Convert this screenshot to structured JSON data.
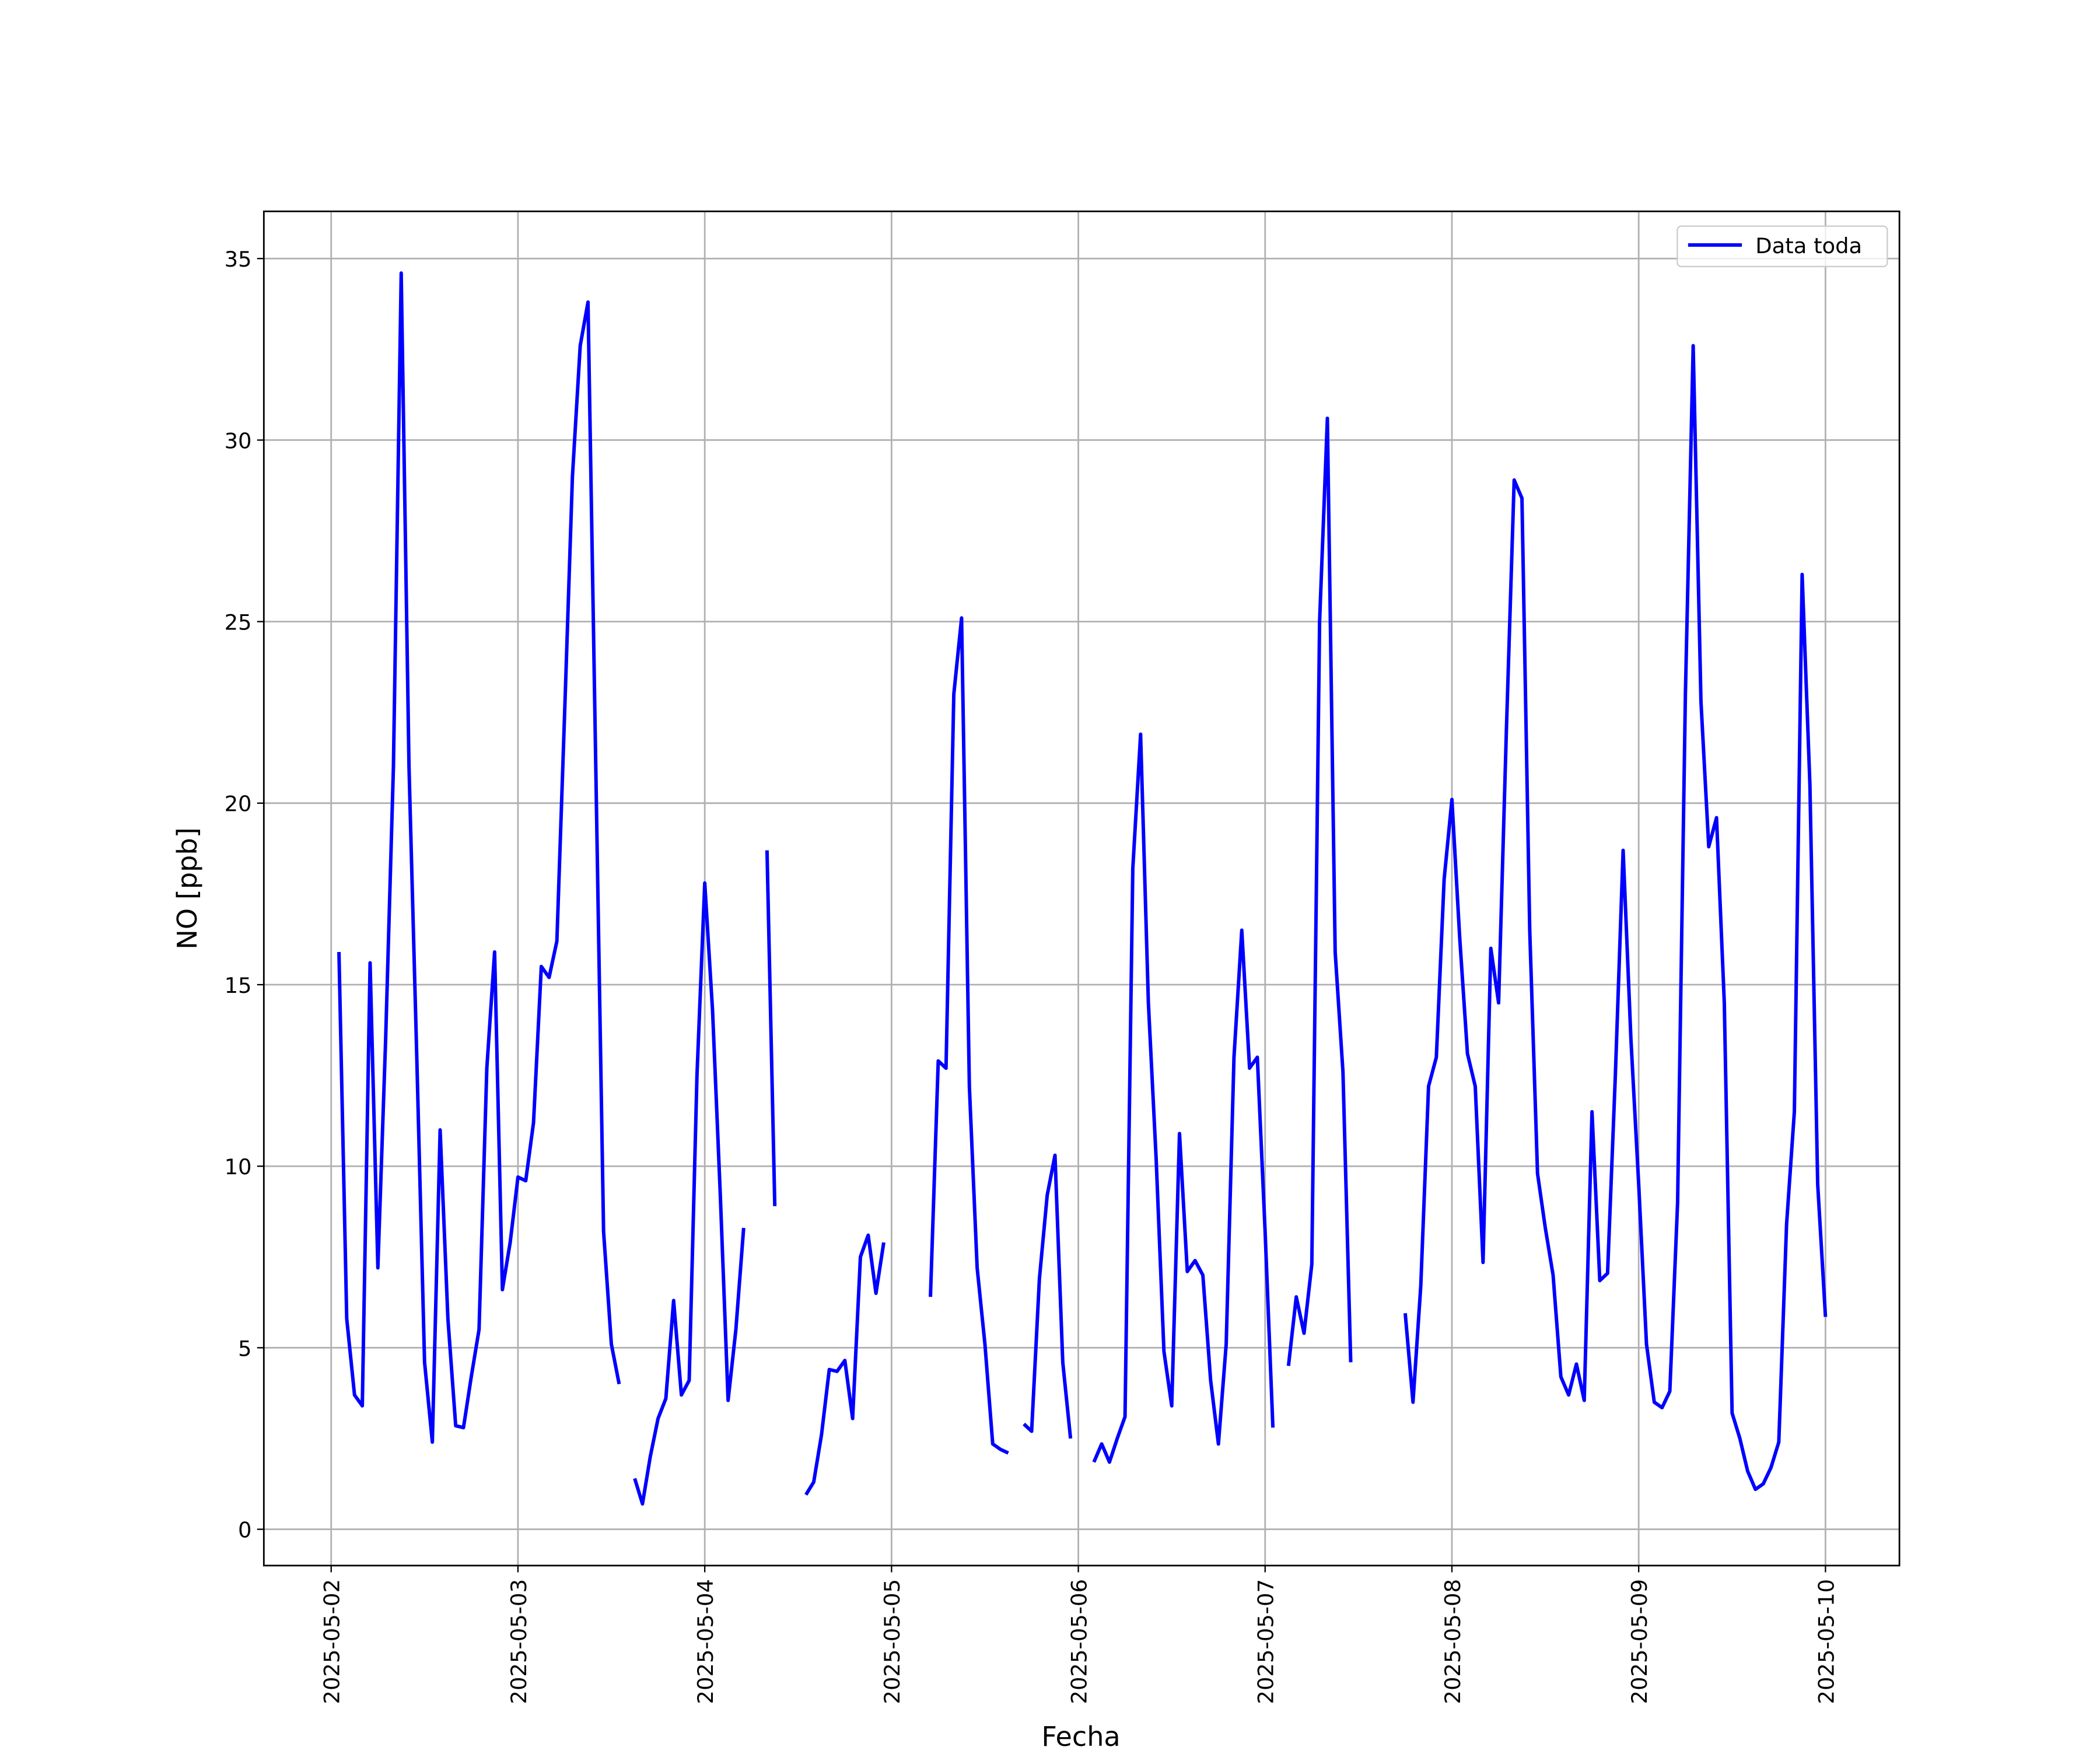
{
  "chart_data": {
    "type": "line",
    "x_label": "Fecha",
    "y_label": "NO [ppb]",
    "x": [
      "2025-05-02 01:00",
      "2025-05-02 02:00",
      "2025-05-02 03:00",
      "2025-05-02 04:00",
      "2025-05-02 05:00",
      "2025-05-02 06:00",
      "2025-05-02 07:00",
      "2025-05-02 08:00",
      "2025-05-02 09:00",
      "2025-05-02 10:00",
      "2025-05-02 11:00",
      "2025-05-02 12:00",
      "2025-05-02 13:00",
      "2025-05-02 14:00",
      "2025-05-02 15:00",
      "2025-05-02 16:00",
      "2025-05-02 17:00",
      "2025-05-02 18:00",
      "2025-05-02 19:00",
      "2025-05-02 20:00",
      "2025-05-02 21:00",
      "2025-05-02 22:00",
      "2025-05-02 23:00",
      "2025-05-03 00:00",
      "2025-05-03 01:00",
      "2025-05-03 02:00",
      "2025-05-03 03:00",
      "2025-05-03 04:00",
      "2025-05-03 05:00",
      "2025-05-03 06:00",
      "2025-05-03 07:00",
      "2025-05-03 08:00",
      "2025-05-03 09:00",
      "2025-05-03 10:00",
      "2025-05-03 11:00",
      "2025-05-03 12:00",
      "2025-05-03 13:00",
      "2025-05-03 14:00",
      "2025-05-03 15:00",
      "2025-05-03 16:00",
      "2025-05-03 17:00",
      "2025-05-03 18:00",
      "2025-05-03 19:00",
      "2025-05-03 20:00",
      "2025-05-03 21:00",
      "2025-05-03 22:00",
      "2025-05-03 23:00",
      "2025-05-04 00:00",
      "2025-05-04 01:00",
      "2025-05-04 02:00",
      "2025-05-04 03:00",
      "2025-05-04 04:00",
      "2025-05-04 05:00",
      "2025-05-04 06:00",
      "2025-05-04 07:00",
      "2025-05-04 08:00",
      "2025-05-04 09:00",
      "2025-05-04 10:00",
      "2025-05-04 11:00",
      "2025-05-04 12:00",
      "2025-05-04 13:00",
      "2025-05-04 14:00",
      "2025-05-04 15:00",
      "2025-05-04 16:00",
      "2025-05-04 17:00",
      "2025-05-04 18:00",
      "2025-05-04 19:00",
      "2025-05-04 20:00",
      "2025-05-04 21:00",
      "2025-05-04 22:00",
      "2025-05-04 23:00",
      "2025-05-05 00:00",
      "2025-05-05 01:00",
      "2025-05-05 02:00",
      "2025-05-05 03:00",
      "2025-05-05 04:00",
      "2025-05-05 05:00",
      "2025-05-05 06:00",
      "2025-05-05 07:00",
      "2025-05-05 08:00",
      "2025-05-05 09:00",
      "2025-05-05 10:00",
      "2025-05-05 11:00",
      "2025-05-05 12:00",
      "2025-05-05 13:00",
      "2025-05-05 14:00",
      "2025-05-05 15:00",
      "2025-05-05 16:00",
      "2025-05-05 17:00",
      "2025-05-05 18:00",
      "2025-05-05 19:00",
      "2025-05-05 20:00",
      "2025-05-05 21:00",
      "2025-05-05 22:00",
      "2025-05-05 23:00",
      "2025-05-06 00:00",
      "2025-05-06 01:00",
      "2025-05-06 02:00",
      "2025-05-06 03:00",
      "2025-05-06 04:00",
      "2025-05-06 05:00",
      "2025-05-06 06:00",
      "2025-05-06 07:00",
      "2025-05-06 08:00",
      "2025-05-06 09:00",
      "2025-05-06 10:00",
      "2025-05-06 11:00",
      "2025-05-06 12:00",
      "2025-05-06 13:00",
      "2025-05-06 14:00",
      "2025-05-06 15:00",
      "2025-05-06 16:00",
      "2025-05-06 17:00",
      "2025-05-06 18:00",
      "2025-05-06 19:00",
      "2025-05-06 20:00",
      "2025-05-06 21:00",
      "2025-05-06 22:00",
      "2025-05-06 23:00",
      "2025-05-07 00:00",
      "2025-05-07 01:00",
      "2025-05-07 02:00",
      "2025-05-07 03:00",
      "2025-05-07 04:00",
      "2025-05-07 05:00",
      "2025-05-07 06:00",
      "2025-05-07 07:00",
      "2025-05-07 08:00",
      "2025-05-07 09:00",
      "2025-05-07 10:00",
      "2025-05-07 11:00",
      "2025-05-07 12:00",
      "2025-05-07 13:00",
      "2025-05-07 14:00",
      "2025-05-07 15:00",
      "2025-05-07 16:00",
      "2025-05-07 17:00",
      "2025-05-07 18:00",
      "2025-05-07 19:00",
      "2025-05-07 20:00",
      "2025-05-07 21:00",
      "2025-05-07 22:00",
      "2025-05-07 23:00",
      "2025-05-08 00:00",
      "2025-05-08 01:00",
      "2025-05-08 02:00",
      "2025-05-08 03:00",
      "2025-05-08 04:00",
      "2025-05-08 05:00",
      "2025-05-08 06:00",
      "2025-05-08 07:00",
      "2025-05-08 08:00",
      "2025-05-08 09:00",
      "2025-05-08 10:00",
      "2025-05-08 11:00",
      "2025-05-08 12:00",
      "2025-05-08 13:00",
      "2025-05-08 14:00",
      "2025-05-08 15:00",
      "2025-05-08 16:00",
      "2025-05-08 17:00",
      "2025-05-08 18:00",
      "2025-05-08 19:00",
      "2025-05-08 20:00",
      "2025-05-08 21:00",
      "2025-05-08 22:00",
      "2025-05-08 23:00",
      "2025-05-09 00:00",
      "2025-05-09 01:00",
      "2025-05-09 02:00",
      "2025-05-09 03:00",
      "2025-05-09 04:00",
      "2025-05-09 05:00",
      "2025-05-09 06:00",
      "2025-05-09 07:00",
      "2025-05-09 08:00",
      "2025-05-09 09:00",
      "2025-05-09 10:00",
      "2025-05-09 11:00",
      "2025-05-09 12:00",
      "2025-05-09 13:00",
      "2025-05-09 14:00",
      "2025-05-09 15:00",
      "2025-05-09 16:00",
      "2025-05-09 17:00",
      "2025-05-09 18:00",
      "2025-05-09 19:00",
      "2025-05-09 20:00",
      "2025-05-09 21:00",
      "2025-05-09 22:00",
      "2025-05-09 23:00",
      "2025-05-10 00:00"
    ],
    "series": [
      {
        "name": "Data toda",
        "color": "#0000ff",
        "values": [
          15.9,
          5.8,
          3.7,
          3.4,
          15.6,
          7.2,
          13.5,
          21,
          34.6,
          21,
          13,
          4.6,
          2.4,
          11,
          5.8,
          2.85,
          2.8,
          4.2,
          5.5,
          12.7,
          15.9,
          6.6,
          7.9,
          9.7,
          9.6,
          11.2,
          15.5,
          15.2,
          16.2,
          22.5,
          29,
          32.6,
          33.8,
          21,
          8.2,
          5.1,
          4.0,
          null,
          1.4,
          0.7,
          2.0,
          3.05,
          3.6,
          6.3,
          3.7,
          4.1,
          12.5,
          17.8,
          14.3,
          9.2,
          3.55,
          5.5,
          8.3,
          null,
          null,
          18.7,
          8.9,
          null,
          null,
          null,
          0.95,
          1.3,
          2.6,
          4.4,
          4.35,
          4.65,
          3.05,
          7.5,
          8.1,
          6.5,
          7.9,
          null,
          null,
          null,
          null,
          null,
          6.4,
          12.9,
          12.7,
          23,
          25.1,
          12.2,
          7.2,
          5.1,
          2.35,
          2.2,
          2.1,
          null,
          2.9,
          2.7,
          6.9,
          9.2,
          10.3,
          4.6,
          2.5,
          null,
          null,
          1.85,
          2.35,
          1.85,
          2.5,
          3.1,
          18.2,
          21.9,
          14.5,
          10.2,
          4.9,
          3.4,
          10.9,
          7.1,
          7.4,
          7.0,
          4.1,
          2.35,
          5.1,
          13.0,
          16.5,
          12.7,
          13.0,
          8.2,
          2.8,
          null,
          4.5,
          6.4,
          5.4,
          7.3,
          25,
          30.6,
          15.9,
          12.6,
          4.6,
          null,
          null,
          null,
          null,
          null,
          null,
          5.95,
          3.5,
          6.7,
          12.2,
          13.0,
          17.9,
          20.1,
          16.3,
          13.1,
          12.2,
          7.35,
          16,
          14.5,
          22,
          28.9,
          28.4,
          16.5,
          9.8,
          8.3,
          7.0,
          4.2,
          3.7,
          4.55,
          3.55,
          11.5,
          6.85,
          7.05,
          12.5,
          18.7,
          13.5,
          9.5,
          5.1,
          3.5,
          3.35,
          3.8,
          9,
          23,
          32.6,
          22.8,
          18.8,
          19.6,
          14.5,
          3.2,
          2.5,
          1.6,
          1.1,
          1.25,
          1.7,
          2.4,
          8.4,
          11.5,
          26.3,
          20.5,
          9.5,
          5.85
        ]
      }
    ],
    "xlim": [
      "2025-05-01 15:21",
      "2025-05-10 09:30"
    ],
    "xticks": [
      "2025-05-02",
      "2025-05-03",
      "2025-05-04",
      "2025-05-05",
      "2025-05-06",
      "2025-05-07",
      "2025-05-08",
      "2025-05-09",
      "2025-05-10"
    ],
    "ylim": [
      -1,
      36.3
    ],
    "yticks": [
      0,
      5,
      10,
      15,
      20,
      25,
      30,
      35
    ],
    "grid": true,
    "legend": "upper-right"
  }
}
